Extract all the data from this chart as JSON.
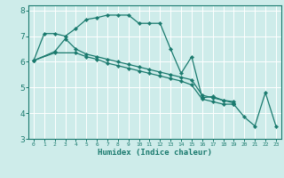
{
  "xlabel": "Humidex (Indice chaleur)",
  "bg_color": "#ceecea",
  "grid_major_color": "#ffffff",
  "grid_minor_color": "#ddf5f3",
  "line_color": "#1a7a6e",
  "xlim": [
    -0.5,
    23.5
  ],
  "ylim": [
    3,
    8.2
  ],
  "yticks": [
    3,
    4,
    5,
    6,
    7,
    8
  ],
  "xticks": [
    0,
    1,
    2,
    3,
    4,
    5,
    6,
    7,
    8,
    9,
    10,
    11,
    12,
    13,
    14,
    15,
    16,
    17,
    18,
    19,
    20,
    21,
    22,
    23
  ],
  "series": [
    {
      "x": [
        0,
        1,
        2,
        3,
        4,
        5,
        6,
        7,
        8,
        9,
        10,
        11,
        12,
        13,
        14,
        15,
        16,
        17,
        18,
        19
      ],
      "y": [
        6.05,
        7.1,
        7.1,
        7.0,
        7.3,
        7.65,
        7.72,
        7.82,
        7.82,
        7.82,
        7.5,
        7.5,
        7.5,
        6.5,
        5.55,
        6.2,
        4.6,
        4.65,
        4.5,
        4.45
      ]
    },
    {
      "x": [
        0,
        2,
        3,
        4,
        5,
        6,
        7,
        8,
        9,
        10,
        11,
        12,
        13,
        14,
        15,
        16,
        17,
        18,
        19
      ],
      "y": [
        6.05,
        6.4,
        6.9,
        6.5,
        6.3,
        6.2,
        6.1,
        6.0,
        5.9,
        5.8,
        5.7,
        5.6,
        5.5,
        5.4,
        5.3,
        4.7,
        4.6,
        4.5,
        4.4
      ]
    },
    {
      "x": [
        0,
        2,
        4,
        5,
        6,
        7,
        8,
        9,
        10,
        11,
        12,
        13,
        14,
        15,
        16,
        17,
        18,
        19
      ],
      "y": [
        6.05,
        6.35,
        6.35,
        6.2,
        6.1,
        5.95,
        5.85,
        5.75,
        5.65,
        5.55,
        5.45,
        5.35,
        5.25,
        5.1,
        4.55,
        4.45,
        4.35,
        4.35
      ]
    },
    {
      "x": [
        19,
        20,
        21,
        22,
        23
      ],
      "y": [
        4.35,
        3.85,
        3.5,
        4.8,
        3.5
      ]
    }
  ]
}
